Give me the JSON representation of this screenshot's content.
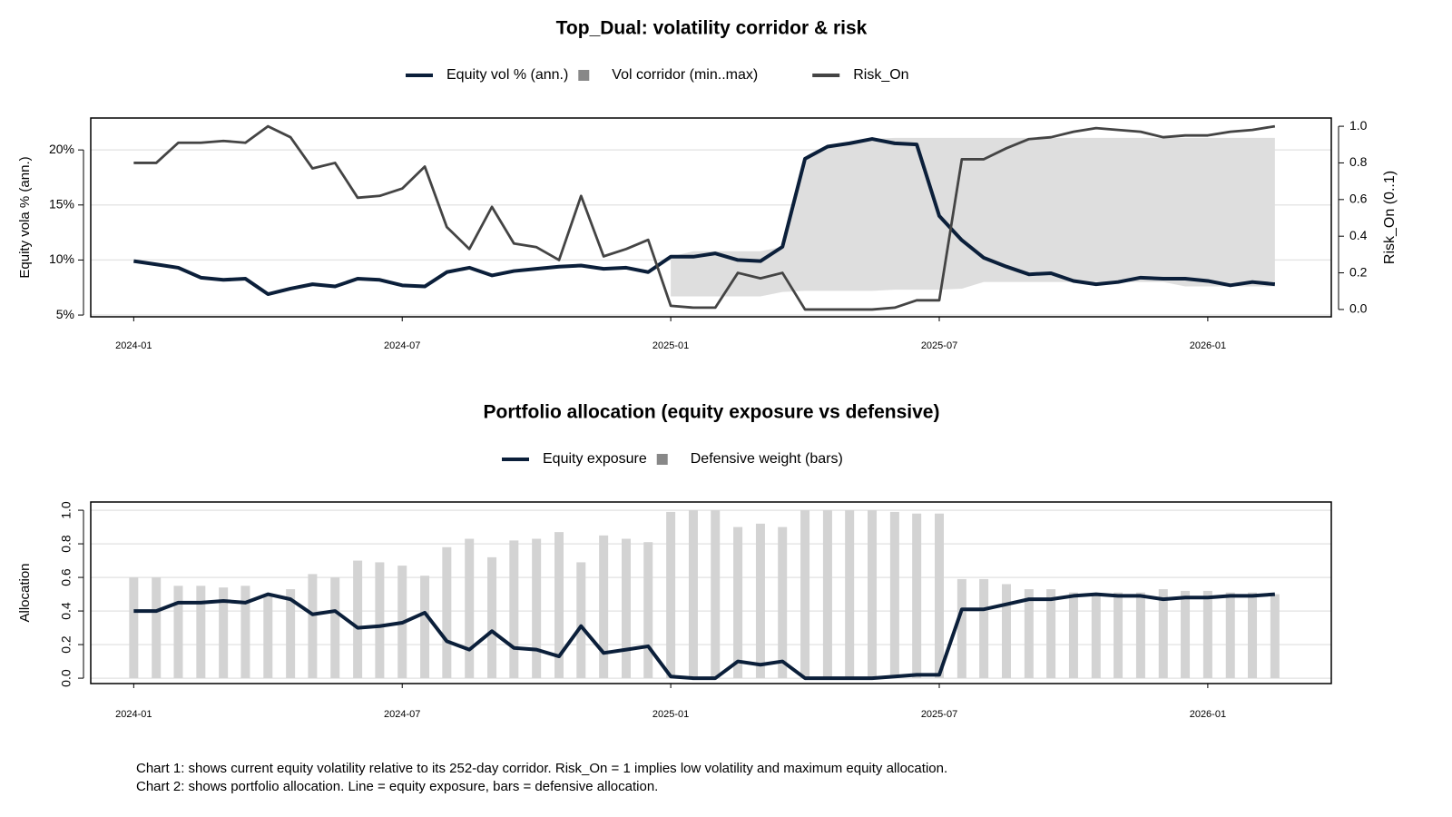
{
  "chart_data": [
    {
      "type": "line",
      "title": "Top_Dual: volatility corridor & risk",
      "y_label": "Equity vola % (ann.)",
      "y2_label": "Risk_On (0..1)",
      "x": [
        2024,
        2024.042,
        2024.083,
        2024.125,
        2024.167,
        2024.208,
        2024.25,
        2024.292,
        2024.333,
        2024.375,
        2024.417,
        2024.458,
        2024.5,
        2024.542,
        2024.583,
        2024.625,
        2024.667,
        2024.708,
        2024.75,
        2024.792,
        2024.833,
        2024.875,
        2024.917,
        2024.958,
        2025,
        2025.042,
        2025.083,
        2025.125,
        2025.167,
        2025.208,
        2025.25,
        2025.292,
        2025.333,
        2025.375,
        2025.417,
        2025.458,
        2025.5,
        2025.542,
        2025.583,
        2025.625,
        2025.667,
        2025.708,
        2025.75,
        2025.792,
        2025.833,
        2025.875,
        2025.917,
        2025.958,
        2026,
        2026.042,
        2026.083,
        2026.125
      ],
      "xlim": [
        2023.92,
        2026.23
      ],
      "xticks": [
        {
          "value": 2024,
          "label": "2024-01"
        },
        {
          "value": 2024.5,
          "label": "2024-07"
        },
        {
          "value": 2025,
          "label": "2025-01"
        },
        {
          "value": 2025.5,
          "label": "2025-07"
        },
        {
          "value": 2026,
          "label": "2026-01"
        }
      ],
      "ylim": [
        4.84,
        22.9
      ],
      "yticks": [
        {
          "value": 5,
          "label": "5%"
        },
        {
          "value": 10,
          "label": "10%"
        },
        {
          "value": 15,
          "label": "15%"
        },
        {
          "value": 20,
          "label": "20%"
        }
      ],
      "y2lim": [
        -0.04,
        1.045
      ],
      "y2ticks": [
        {
          "value": 0,
          "label": "0.0"
        },
        0.2,
        0.4,
        0.6,
        0.8,
        {
          "value": 1,
          "label": "1.0"
        }
      ],
      "grid": true,
      "series": [
        {
          "name": "Equity vol % (ann.)",
          "type": "line",
          "color": "#0b1f3a",
          "values": [
            9.9,
            9.6,
            9.3,
            8.4,
            8.2,
            8.3,
            6.9,
            7.4,
            7.8,
            7.6,
            8.3,
            8.2,
            7.7,
            7.6,
            8.9,
            9.3,
            8.6,
            9.0,
            9.2,
            9.4,
            9.5,
            9.2,
            9.3,
            8.9,
            10.3,
            10.3,
            10.6,
            10.0,
            9.9,
            11.2,
            19.2,
            20.3,
            20.6,
            21.0,
            20.6,
            20.5,
            14.0,
            11.8,
            10.2,
            9.4,
            8.7,
            8.8,
            8.1,
            7.8,
            8.0,
            8.4,
            8.3,
            8.3,
            8.1,
            7.7,
            8.0,
            7.8
          ]
        },
        {
          "name": "Vol corridor (min..max)",
          "type": "band",
          "color": "#dedede",
          "lower": [
            null,
            null,
            null,
            null,
            null,
            null,
            null,
            null,
            null,
            null,
            null,
            null,
            null,
            null,
            null,
            null,
            null,
            null,
            null,
            null,
            null,
            null,
            null,
            null,
            6.7,
            6.7,
            6.7,
            6.7,
            6.7,
            7.1,
            7.2,
            7.2,
            7.2,
            7.2,
            7.3,
            7.3,
            7.3,
            7.4,
            8.0,
            8.0,
            8.0,
            8.0,
            8.0,
            8.0,
            8.0,
            8.0,
            8.0,
            7.6,
            7.6,
            7.6,
            7.6,
            7.6
          ],
          "upper": [
            null,
            null,
            null,
            null,
            null,
            null,
            null,
            null,
            null,
            null,
            null,
            null,
            null,
            null,
            null,
            null,
            null,
            null,
            null,
            null,
            null,
            null,
            null,
            null,
            10.3,
            10.8,
            10.8,
            10.8,
            10.8,
            11.2,
            19.2,
            20.3,
            20.6,
            21.0,
            21.1,
            21.1,
            21.1,
            21.1,
            21.1,
            21.1,
            21.1,
            21.1,
            21.1,
            21.1,
            21.1,
            21.1,
            21.1,
            21.1,
            21.1,
            21.1,
            21.1,
            21.1
          ]
        },
        {
          "name": "Risk_On",
          "type": "line",
          "axis": "y2",
          "color": "#444444",
          "values": [
            0.8,
            0.8,
            0.91,
            0.91,
            0.92,
            0.91,
            1.0,
            0.94,
            0.77,
            0.8,
            0.61,
            0.62,
            0.66,
            0.78,
            0.45,
            0.33,
            0.56,
            0.36,
            0.34,
            0.27,
            0.62,
            0.29,
            0.33,
            0.38,
            0.02,
            0.01,
            0.01,
            0.2,
            0.17,
            0.2,
            0.0,
            0.0,
            0.0,
            0.0,
            0.01,
            0.05,
            0.05,
            0.82,
            0.82,
            0.88,
            0.93,
            0.94,
            0.97,
            0.99,
            0.98,
            0.97,
            0.94,
            0.95,
            0.95,
            0.97,
            0.98,
            1.0
          ]
        }
      ]
    },
    {
      "type": "line",
      "title": "Portfolio allocation (equity exposure vs defensive)",
      "y_label": "Allocation",
      "x": [
        2024,
        2024.042,
        2024.083,
        2024.125,
        2024.167,
        2024.208,
        2024.25,
        2024.292,
        2024.333,
        2024.375,
        2024.417,
        2024.458,
        2024.5,
        2024.542,
        2024.583,
        2024.625,
        2024.667,
        2024.708,
        2024.75,
        2024.792,
        2024.833,
        2024.875,
        2024.917,
        2024.958,
        2025,
        2025.042,
        2025.083,
        2025.125,
        2025.167,
        2025.208,
        2025.25,
        2025.292,
        2025.333,
        2025.375,
        2025.417,
        2025.458,
        2025.5,
        2025.542,
        2025.583,
        2025.625,
        2025.667,
        2025.708,
        2025.75,
        2025.792,
        2025.833,
        2025.875,
        2025.917,
        2025.958,
        2026,
        2026.042,
        2026.083,
        2026.125
      ],
      "xlim": [
        2023.92,
        2026.23
      ],
      "xticks": [
        {
          "value": 2024,
          "label": "2024-01"
        },
        {
          "value": 2024.5,
          "label": "2024-07"
        },
        {
          "value": 2025,
          "label": "2025-01"
        },
        {
          "value": 2025.5,
          "label": "2025-07"
        },
        {
          "value": 2026,
          "label": "2026-01"
        }
      ],
      "ylim": [
        -0.032,
        1.049
      ],
      "yticks": [
        {
          "value": 0,
          "label": "0.0"
        },
        0.2,
        0.4,
        0.6,
        0.8,
        {
          "value": 1,
          "label": "1.0"
        }
      ],
      "grid": true,
      "series": [
        {
          "name": "Equity exposure",
          "type": "line",
          "color": "#0b1f3a",
          "values": [
            0.4,
            0.4,
            0.45,
            0.45,
            0.46,
            0.45,
            0.5,
            0.47,
            0.38,
            0.4,
            0.3,
            0.31,
            0.33,
            0.39,
            0.22,
            0.17,
            0.28,
            0.18,
            0.17,
            0.13,
            0.31,
            0.15,
            0.17,
            0.19,
            0.01,
            0.0,
            0.0,
            0.1,
            0.08,
            0.1,
            0.0,
            0.0,
            0.0,
            0.0,
            0.01,
            0.02,
            0.02,
            0.41,
            0.41,
            0.44,
            0.47,
            0.47,
            0.49,
            0.5,
            0.49,
            0.49,
            0.47,
            0.48,
            0.48,
            0.49,
            0.49,
            0.5
          ]
        },
        {
          "name": "Defensive weight (bars)",
          "type": "bar",
          "color": "#d3d3d3",
          "values": [
            0.6,
            0.6,
            0.55,
            0.55,
            0.54,
            0.55,
            0.5,
            0.53,
            0.62,
            0.6,
            0.7,
            0.69,
            0.67,
            0.61,
            0.78,
            0.83,
            0.72,
            0.82,
            0.83,
            0.87,
            0.69,
            0.85,
            0.83,
            0.81,
            0.99,
            1.0,
            1.0,
            0.9,
            0.92,
            0.9,
            1.0,
            1.0,
            1.0,
            1.0,
            0.99,
            0.98,
            0.98,
            0.59,
            0.59,
            0.56,
            0.53,
            0.53,
            0.51,
            0.5,
            0.51,
            0.51,
            0.53,
            0.52,
            0.52,
            0.51,
            0.51,
            0.5
          ]
        }
      ]
    }
  ],
  "notes": [
    "Chart 1: shows current equity volatility relative to its 252-day corridor. Risk_On = 1 implies low volatility and maximum equity allocation.",
    "Chart 2: shows portfolio allocation. Line = equity exposure, bars = defensive allocation."
  ]
}
